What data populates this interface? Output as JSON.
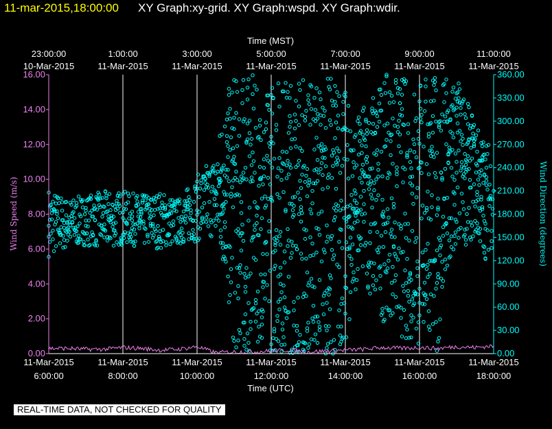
{
  "header": {
    "timestamp": "11-mar-2015,18:00:00",
    "graphs": "XY Graph:xy-grid.  XY Graph:wspd.  XY Graph:wdir."
  },
  "disclaimer": "REAL-TIME DATA, NOT CHECKED FOR QUALITY",
  "colors": {
    "background": "#000000",
    "grid": "#ffffff",
    "wind_speed": "#ee82ee",
    "wind_direction": "#00ffff",
    "timestamp_text": "#ffff00"
  },
  "chart_data": {
    "type": "scatter",
    "grid": true,
    "x_top": {
      "label": "Time (MST)",
      "ticks": [
        {
          "time": "23:00:00",
          "date": "10-Mar-2015"
        },
        {
          "time": "1:00:00",
          "date": "11-Mar-2015"
        },
        {
          "time": "3:00:00",
          "date": "11-Mar-2015"
        },
        {
          "time": "5:00:00",
          "date": "11-Mar-2015"
        },
        {
          "time": "7:00:00",
          "date": "11-Mar-2015"
        },
        {
          "time": "9:00:00",
          "date": "11-Mar-2015"
        },
        {
          "time": "11:00:00",
          "date": "11-Mar-2015"
        }
      ]
    },
    "x_bottom": {
      "label": "Time (UTC)",
      "range_hours": [
        6,
        18
      ],
      "ticks": [
        {
          "date": "11-Mar-2015",
          "time": "6:00:00"
        },
        {
          "date": "11-Mar-2015",
          "time": "8:00:00"
        },
        {
          "date": "11-Mar-2015",
          "time": "10:00:00"
        },
        {
          "date": "11-Mar-2015",
          "time": "12:00:00"
        },
        {
          "date": "11-Mar-2015",
          "time": "14:00:00"
        },
        {
          "date": "11-Mar-2015",
          "time": "16:00:00"
        },
        {
          "date": "11-Mar-2015",
          "time": "18:00:00"
        }
      ]
    },
    "y_left": {
      "label": "Wind Speed (m/s)",
      "ylim": [
        0,
        16
      ],
      "ticks": [
        "0.00",
        "2.00",
        "4.00",
        "6.00",
        "8.00",
        "10.00",
        "12.00",
        "14.00",
        "16.00"
      ]
    },
    "y_right": {
      "label": "Wind Direction (degrees)",
      "ylim": [
        0,
        360
      ],
      "ticks": [
        "0.00",
        "30.00",
        "60.00",
        "90.00",
        "120.00",
        "150.00",
        "180.00",
        "210.00",
        "240.00",
        "270.00",
        "300.00",
        "330.00",
        "360.00"
      ]
    },
    "series": [
      {
        "key": "wspd",
        "color": "#ee82ee",
        "style": "line",
        "x": [
          6.0,
          6.5,
          7.0,
          7.5,
          8.0,
          8.5,
          9.0,
          9.5,
          10.0,
          10.5,
          11.0,
          11.5,
          12.0,
          12.5,
          13.0,
          13.5,
          14.0,
          14.5,
          15.0,
          15.5,
          16.0,
          16.5,
          17.0,
          17.5,
          18.0
        ],
        "y": [
          0.3,
          0.3,
          0.25,
          0.25,
          0.35,
          0.3,
          0.2,
          0.25,
          0.4,
          0.05,
          0.1,
          0.1,
          0.15,
          0.2,
          0.1,
          0.15,
          0.2,
          0.25,
          0.35,
          0.3,
          0.35,
          0.3,
          0.4,
          0.35,
          0.45
        ]
      },
      {
        "key": "wdir",
        "color": "#00ffff",
        "style": "points",
        "x": [
          6.0,
          6.25,
          6.5,
          6.75,
          7.0,
          7.25,
          7.5,
          7.75,
          8.0,
          8.25,
          8.5,
          8.75,
          9.0,
          9.25,
          9.5,
          9.75,
          10.0,
          10.25,
          10.5,
          10.75,
          11.0,
          11.25,
          11.5,
          11.75,
          12.0,
          12.25,
          12.5,
          12.75,
          13.0,
          13.25,
          13.5,
          13.75,
          14.0,
          14.25,
          14.5,
          14.75,
          15.0,
          15.25,
          15.5,
          15.75,
          16.0,
          16.25,
          16.5,
          16.75,
          17.0,
          17.25,
          17.5,
          17.75,
          18.0
        ],
        "y": [
          165,
          160,
          170,
          158,
          165,
          172,
          160,
          168,
          175,
          162,
          170,
          165,
          158,
          168,
          175,
          190,
          185,
          170,
          165,
          230,
          290,
          40,
          150,
          200,
          280,
          90,
          330,
          180,
          40,
          250,
          30,
          320,
          100,
          240,
          210,
          310,
          180,
          160,
          260,
          220,
          240,
          280,
          200,
          300,
          170,
          250,
          190,
          230,
          210
        ]
      },
      {
        "key": "wdir_range",
        "color": "#00ffff",
        "style": "range",
        "x": [
          6.0,
          6.5,
          7.0,
          7.5,
          8.0,
          8.5,
          9.0,
          9.5,
          10.0,
          10.5,
          10.75,
          11.0,
          11.25,
          11.5,
          11.75,
          12.0,
          12.25,
          12.5,
          12.75,
          13.0,
          13.25,
          13.5,
          13.75,
          14.0,
          14.25,
          14.5,
          14.75,
          15.0,
          15.25,
          15.5,
          15.75,
          16.0,
          16.25,
          16.5,
          16.75,
          17.0,
          17.25,
          17.5,
          17.75,
          18.0
        ],
        "low": [
          125,
          135,
          140,
          135,
          140,
          138,
          135,
          140,
          145,
          150,
          100,
          0,
          0,
          0,
          20,
          0,
          0,
          0,
          0,
          0,
          0,
          0,
          0,
          0,
          80,
          100,
          60,
          40,
          50,
          20,
          10,
          0,
          30,
          0,
          60,
          130,
          140,
          150,
          120,
          140
        ],
        "high": [
          215,
          200,
          205,
          210,
          210,
          205,
          210,
          200,
          230,
          260,
          330,
          360,
          360,
          360,
          320,
          360,
          360,
          360,
          360,
          360,
          360,
          360,
          360,
          340,
          300,
          320,
          340,
          360,
          360,
          360,
          360,
          360,
          360,
          360,
          360,
          360,
          330,
          300,
          280,
          270
        ]
      }
    ]
  }
}
